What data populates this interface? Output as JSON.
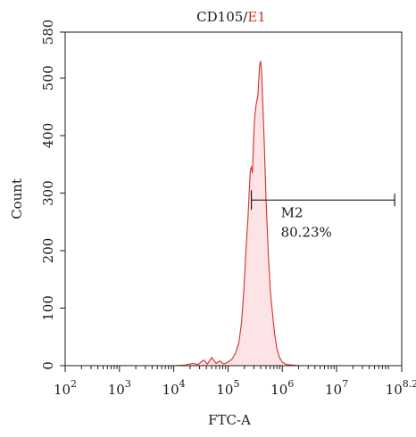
{
  "chart_data": {
    "type": "area",
    "title": "CD105/",
    "title_highlight": "E1",
    "title_highlight_color": "#d4302a",
    "xlabel": "FTC-A",
    "ylabel": "Count",
    "x_scale": "log",
    "xlim": [
      2,
      8.2
    ],
    "ylim": [
      0,
      580
    ],
    "x_ticks": [
      {
        "exp": 2,
        "base": "10",
        "sup": "2"
      },
      {
        "exp": 3,
        "base": "10",
        "sup": "3"
      },
      {
        "exp": 4,
        "base": "10",
        "sup": "4"
      },
      {
        "exp": 5,
        "base": "10",
        "sup": "5"
      },
      {
        "exp": 6,
        "base": "10",
        "sup": "6"
      },
      {
        "exp": 7,
        "base": "10",
        "sup": "7"
      },
      {
        "exp": 8.2,
        "base": "10",
        "sup": "8.2"
      }
    ],
    "y_ticks": [
      0,
      100,
      200,
      300,
      400,
      500,
      580
    ],
    "line_color": "#d4302a",
    "fill_color": "#fbe3e6",
    "points": [
      [
        4.02,
        0
      ],
      [
        4.2,
        1
      ],
      [
        4.35,
        4
      ],
      [
        4.45,
        2
      ],
      [
        4.55,
        10
      ],
      [
        4.62,
        3
      ],
      [
        4.7,
        14
      ],
      [
        4.78,
        4
      ],
      [
        4.85,
        8
      ],
      [
        4.92,
        3
      ],
      [
        5.0,
        6
      ],
      [
        5.08,
        12
      ],
      [
        5.14,
        22
      ],
      [
        5.2,
        40
      ],
      [
        5.25,
        75
      ],
      [
        5.29,
        130
      ],
      [
        5.33,
        200
      ],
      [
        5.37,
        260
      ],
      [
        5.39,
        300
      ],
      [
        5.41,
        340
      ],
      [
        5.43,
        345
      ],
      [
        5.45,
        335
      ],
      [
        5.47,
        390
      ],
      [
        5.49,
        430
      ],
      [
        5.52,
        455
      ],
      [
        5.55,
        470
      ],
      [
        5.58,
        520
      ],
      [
        5.6,
        530
      ],
      [
        5.62,
        510
      ],
      [
        5.64,
        460
      ],
      [
        5.67,
        380
      ],
      [
        5.7,
        290
      ],
      [
        5.74,
        200
      ],
      [
        5.78,
        130
      ],
      [
        5.82,
        90
      ],
      [
        5.86,
        55
      ],
      [
        5.9,
        30
      ],
      [
        5.95,
        14
      ],
      [
        6.0,
        6
      ],
      [
        6.08,
        2
      ],
      [
        6.3,
        0
      ]
    ],
    "gate": {
      "name": "M2",
      "percent": "80.23%",
      "x_start": 5.43,
      "x_end": 8.07,
      "y": 288
    }
  }
}
